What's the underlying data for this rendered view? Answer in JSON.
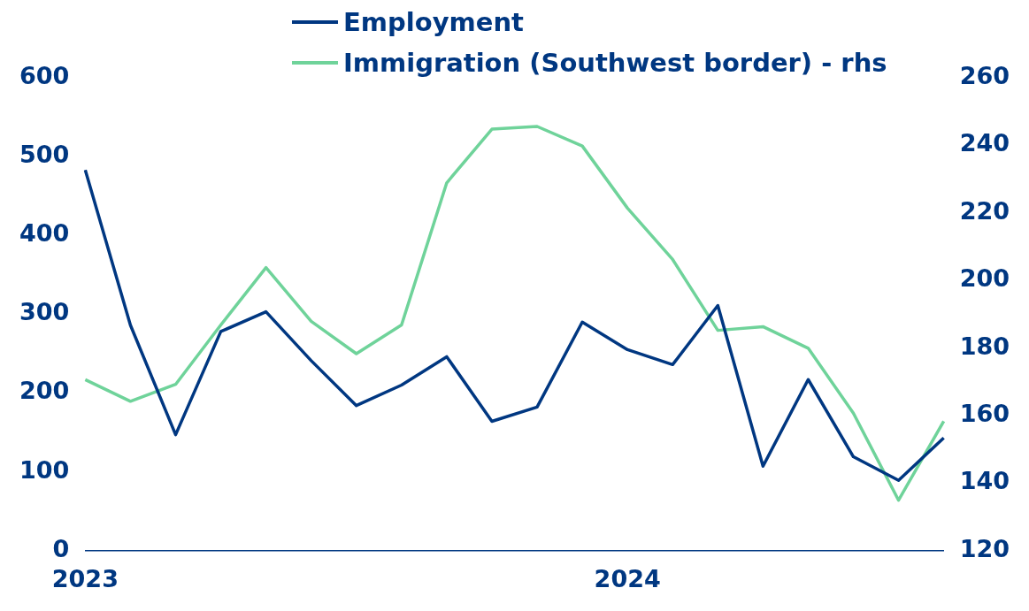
{
  "chart_data": {
    "type": "line",
    "categories": [
      "2023",
      null,
      null,
      null,
      null,
      null,
      null,
      null,
      null,
      null,
      null,
      null,
      "2024",
      null,
      null,
      null,
      null,
      null,
      null,
      null
    ],
    "series": [
      {
        "name": "Employment",
        "color": "#003781",
        "values": [
          483,
          286,
          147,
          278,
          303,
          241,
          184,
          210,
          246,
          164,
          182,
          290,
          255,
          236,
          311,
          107,
          217,
          119,
          89,
          143
        ]
      },
      {
        "name": "Immigration (Southwest border) - rhs",
        "color": "#6fd39a",
        "axis": "y2",
        "values": [
          170.6,
          164.2,
          169.2,
          186.8,
          203.8,
          187.9,
          178.3,
          186.8,
          228.9,
          244.8,
          245.6,
          239.8,
          221.4,
          206.2,
          185.2,
          186.3,
          179.9,
          160.7,
          134.9,
          158.3
        ]
      }
    ],
    "ylim": [
      0,
      600
    ],
    "yticks": [
      0,
      100,
      200,
      300,
      400,
      500,
      600
    ],
    "y2lim": [
      120,
      260
    ],
    "y2ticks": [
      120,
      140,
      160,
      180,
      200,
      220,
      240,
      260
    ],
    "grid": false,
    "legend": "top",
    "marker": "none",
    "line_style": "solid"
  }
}
